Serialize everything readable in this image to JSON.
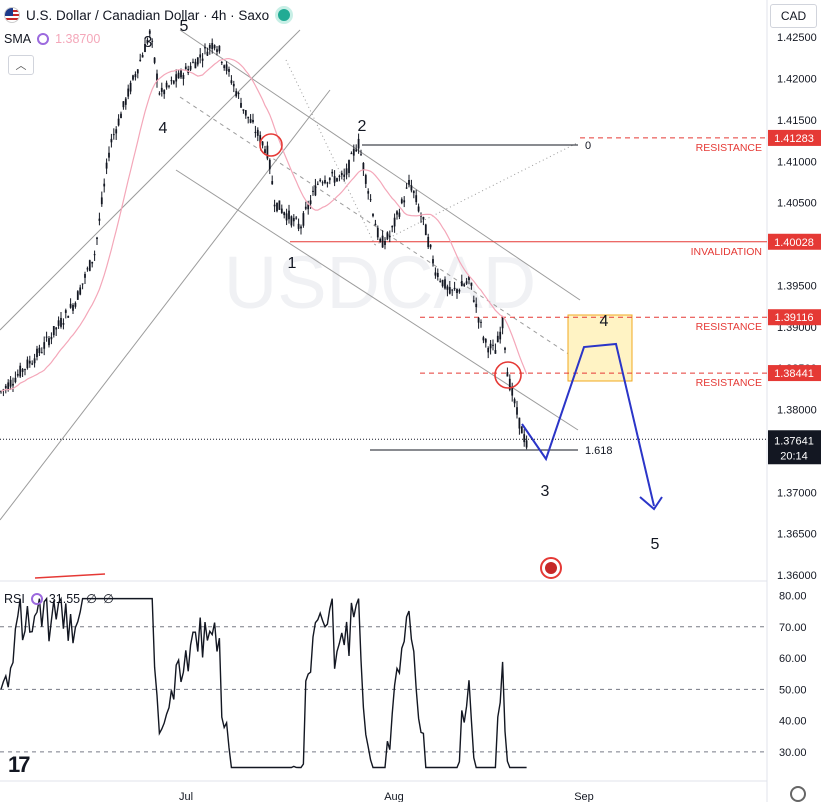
{
  "header": {
    "title": "U.S. Dollar / Canadian Dollar · 4h · Saxo",
    "indicator_name": "SMA",
    "indicator_value": "1.38700",
    "currency": "CAD",
    "watermark": "USDCAD"
  },
  "rsi": {
    "name": "RSI",
    "value": "31.55",
    "extra1": "∅",
    "extra2": "∅"
  },
  "chart_data": {
    "type": "line",
    "title": "U.S. Dollar / Canadian Dollar · 4h · Saxo",
    "price_axis": {
      "ticks": [
        "1.42500",
        "1.42000",
        "1.41500",
        "1.41000",
        "1.40500",
        "1.40000",
        "1.39500",
        "1.39000",
        "1.38500",
        "1.38000",
        "1.37500",
        "1.37000",
        "1.36500",
        "1.36000"
      ],
      "range": [
        1.3594,
        1.4295
      ]
    },
    "rsi_axis": {
      "ticks": [
        "80.00",
        "70.00",
        "60.00",
        "50.00",
        "40.00",
        "30.00"
      ],
      "range": [
        21,
        84
      ]
    },
    "time_axis": {
      "ticks": [
        "Jul",
        "Aug",
        "Sep"
      ]
    },
    "current_price": "1.37641",
    "countdown": "20:14",
    "levels": [
      {
        "value": 1.41283,
        "label": "RESISTANCE",
        "tag": "1.41283",
        "color": "#e53935"
      },
      {
        "value": 1.40028,
        "label": "INVALIDATION",
        "tag": "1.40028",
        "color": "#e53935"
      },
      {
        "value": 1.39116,
        "label": "RESISTANCE",
        "tag": "1.39116",
        "color": "#e53935"
      },
      {
        "value": 1.38441,
        "label": "RESISTANCE",
        "tag": "1.38441",
        "color": "#e53935"
      }
    ],
    "fib_labels": [
      "0",
      "1.618"
    ],
    "wave_labels": [
      "3",
      "5",
      "4",
      "2",
      "1",
      "3",
      "4",
      "5"
    ],
    "rsi_levels": [
      70,
      30
    ],
    "rsi_dashed": [
      50
    ],
    "colors": {
      "candle": "#131722",
      "sma": "#f4a7b9",
      "resistance": "#e53935",
      "projection": "#2b35c8",
      "target_box": "#ffe599"
    }
  }
}
